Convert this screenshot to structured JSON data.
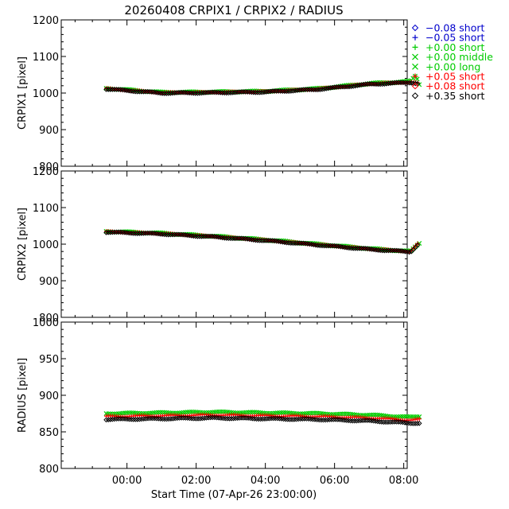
{
  "chart_data": {
    "type": "scatter",
    "title": "20260408 CRPIX1 / CRPIX2 / RADIUS",
    "xlabel": "Start Time (07-Apr-26 23:00:00)",
    "x_unit": "hours since 07-Apr-26 23:00:00",
    "xlim": [
      -0.9,
      9.1
    ],
    "x_ticks": [
      1,
      3,
      5,
      7,
      9
    ],
    "x_tick_labels": [
      "00:00",
      "02:00",
      "04:00",
      "06:00",
      "08:00"
    ],
    "legend_position": "right",
    "legend": [
      {
        "label": "−0.08 short",
        "marker": "diamond",
        "color": "#0000cc"
      },
      {
        "label": "−0.05 short",
        "marker": "plus",
        "color": "#0000cc"
      },
      {
        "label": "+0.00 short",
        "marker": "plus",
        "color": "#00cc00"
      },
      {
        "label": "+0.00 middle",
        "marker": "cross",
        "color": "#00cc00"
      },
      {
        "label": "+0.00 long",
        "marker": "cross",
        "color": "#00cc00"
      },
      {
        "label": "+0.05 short",
        "marker": "plus",
        "color": "#ff0000"
      },
      {
        "label": "+0.08 short",
        "marker": "diamond",
        "color": "#ff0000"
      },
      {
        "label": "+0.35 short",
        "marker": "diamond",
        "color": "#000000"
      }
    ],
    "panels": [
      {
        "ylabel": "CRPIX1 [pixel]",
        "ylim": [
          800,
          1200
        ],
        "y_ticks": [
          800,
          900,
          1000,
          1100,
          1200
        ],
        "series": [
          {
            "color": "#00cc00",
            "marker": "cross",
            "x": [
              0.4,
              2.0,
              3.5,
              5.0,
              6.5,
              8.0,
              9.2,
              9.35,
              9.45
            ],
            "y": [
              1013,
              1002,
              1003,
              1005,
              1012,
              1026,
              1032,
              1048,
              1024
            ]
          },
          {
            "color": "#ff0000",
            "marker": "plus",
            "x": [
              0.4,
              2.0,
              3.5,
              5.0,
              6.5,
              8.0,
              9.2,
              9.4
            ],
            "y": [
              1012,
              1001,
              1002,
              1004,
              1011,
              1025,
              1030,
              1027
            ]
          },
          {
            "color": "#000000",
            "marker": "diamond",
            "x": [
              0.4,
              2.0,
              3.5,
              5.0,
              6.5,
              8.0,
              9.2,
              9.4
            ],
            "y": [
              1011,
              1000,
              1001,
              1003,
              1010,
              1024,
              1029,
              1026
            ]
          }
        ]
      },
      {
        "ylabel": "CRPIX2 [pixel]",
        "ylim": [
          800,
          1200
        ],
        "y_ticks": [
          800,
          900,
          1000,
          1100,
          1200
        ],
        "series": [
          {
            "color": "#00cc00",
            "marker": "cross",
            "x": [
              0.4,
              2.0,
              3.5,
              5.0,
              6.5,
              8.0,
              9.2,
              9.3,
              9.45
            ],
            "y": [
              1035,
              1030,
              1022,
              1012,
              1000,
              988,
              980,
              990,
              1003
            ]
          },
          {
            "color": "#ff0000",
            "marker": "plus",
            "x": [
              0.4,
              2.0,
              3.5,
              5.0,
              6.5,
              8.0,
              9.2,
              9.4
            ],
            "y": [
              1034,
              1029,
              1021,
              1011,
              999,
              987,
              980,
              1000
            ]
          },
          {
            "color": "#000000",
            "marker": "diamond",
            "x": [
              0.4,
              2.0,
              3.5,
              5.0,
              6.5,
              8.0,
              9.2,
              9.4
            ],
            "y": [
              1033,
              1028,
              1020,
              1010,
              998,
              986,
              979,
              998
            ]
          }
        ]
      },
      {
        "ylabel": "RADIUS [pixel]",
        "ylim": [
          800,
          1000
        ],
        "y_ticks": [
          800,
          850,
          900,
          950,
          1000
        ],
        "series": [
          {
            "color": "#00cc00",
            "marker": "cross",
            "x": [
              0.4,
              2.0,
              3.5,
              5.0,
              6.5,
              8.0,
              9.2,
              9.45
            ],
            "y": [
              875,
              876,
              877,
              876,
              875,
              873,
              870,
              871
            ]
          },
          {
            "color": "#ff0000",
            "marker": "plus",
            "x": [
              0.4,
              2.0,
              3.5,
              5.0,
              6.5,
              8.0,
              9.2,
              9.45
            ],
            "y": [
              871,
              872,
              873,
              872,
              871,
              869,
              866,
              867
            ]
          },
          {
            "color": "#000000",
            "marker": "diamond",
            "x": [
              0.4,
              2.0,
              3.5,
              5.0,
              6.5,
              8.0,
              9.2,
              9.45
            ],
            "y": [
              867,
              868,
              869,
              868,
              867,
              865,
              862,
              862
            ]
          }
        ]
      }
    ]
  }
}
